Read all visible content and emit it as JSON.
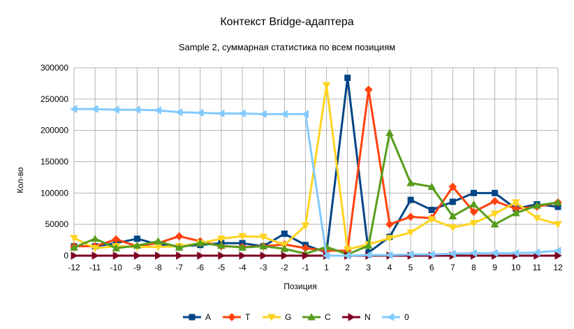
{
  "chart_data": {
    "type": "line",
    "title": "Контекст Bridge-адаптера",
    "subtitle": "Sample 2, суммарная статистика по всем позициям",
    "xlabel": "Позиция",
    "ylabel": "Кол-во",
    "ylim": [
      0,
      300000
    ],
    "yticks": [
      "0",
      "50000",
      "100000",
      "150000",
      "200000",
      "250000",
      "300000"
    ],
    "grid": true,
    "legend_position": "bottom",
    "categories": [
      "-12",
      "-11",
      "-10",
      "-9",
      "-8",
      "-7",
      "-6",
      "-5",
      "-4",
      "-3",
      "-2",
      "-1",
      "1",
      "2",
      "3",
      "4",
      "5",
      "6",
      "7",
      "8",
      "9",
      "10",
      "11",
      "12"
    ],
    "series": [
      {
        "name": "A",
        "color": "#004586",
        "marker": "square",
        "values": [
          15000,
          15000,
          20000,
          27000,
          18000,
          15000,
          17000,
          20000,
          20000,
          15000,
          35000,
          17000,
          5000,
          284000,
          5000,
          30000,
          89000,
          73000,
          86000,
          100000,
          100000,
          75000,
          82000,
          78000
        ]
      },
      {
        "name": "T",
        "color": "#ff420e",
        "marker": "diamond",
        "values": [
          15000,
          15000,
          26000,
          15000,
          20000,
          31000,
          23000,
          15000,
          14000,
          15000,
          18000,
          12000,
          8000,
          8000,
          265000,
          50000,
          62000,
          60000,
          110000,
          70000,
          87000,
          75000,
          78000,
          85000
        ]
      },
      {
        "name": "G",
        "color": "#ffd320",
        "marker": "triangle-down",
        "values": [
          28000,
          12000,
          15000,
          14000,
          14000,
          15000,
          20000,
          27000,
          31000,
          30000,
          17000,
          48000,
          272000,
          10000,
          18000,
          28000,
          37000,
          58000,
          45000,
          52000,
          67000,
          85000,
          60000,
          50000
        ]
      },
      {
        "name": "C",
        "color": "#579d1c",
        "marker": "triangle-up",
        "values": [
          13000,
          27000,
          12000,
          16000,
          23000,
          13000,
          20000,
          16000,
          13000,
          15000,
          11000,
          3000,
          14000,
          2000,
          16000,
          196000,
          116000,
          110000,
          63000,
          82000,
          50000,
          68000,
          80000,
          85000
        ]
      },
      {
        "name": "N",
        "color": "#7e0021",
        "marker": "triangle-right",
        "values": [
          0,
          0,
          0,
          0,
          0,
          0,
          0,
          0,
          0,
          0,
          0,
          0,
          0,
          0,
          0,
          0,
          0,
          0,
          0,
          0,
          0,
          0,
          0,
          0
        ]
      },
      {
        "name": "0",
        "color": "#83caff",
        "marker": "triangle-left",
        "values": [
          234000,
          234000,
          233000,
          233000,
          232000,
          229000,
          228000,
          227000,
          227000,
          226000,
          226000,
          226000,
          0,
          0,
          1000,
          1000,
          2000,
          2000,
          3000,
          4000,
          4000,
          4000,
          5000,
          8000
        ]
      }
    ]
  }
}
